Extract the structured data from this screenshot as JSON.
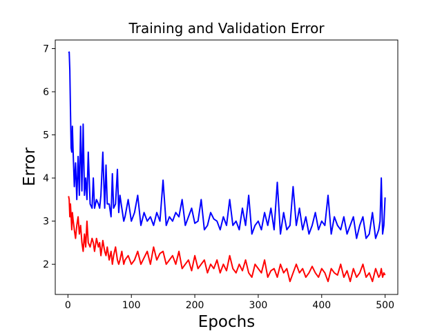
{
  "chart_data": {
    "type": "line",
    "title": "Training and Validation Error",
    "xlabel": "Epochs",
    "ylabel": "Error",
    "xlim": [
      -20,
      520
    ],
    "ylim": [
      1.3,
      7.2
    ],
    "x_ticks": [
      0,
      100,
      200,
      300,
      400,
      500
    ],
    "y_ticks": [
      2,
      3,
      4,
      5,
      6,
      7
    ],
    "grid": false,
    "legend": "none",
    "series": [
      {
        "color": "#0000ff",
        "x": [
          1,
          2,
          3,
          4,
          5,
          6,
          7,
          8,
          10,
          12,
          14,
          16,
          18,
          20,
          22,
          24,
          26,
          28,
          30,
          32,
          35,
          38,
          40,
          42,
          45,
          48,
          50,
          52,
          55,
          58,
          60,
          62,
          65,
          68,
          70,
          72,
          75,
          78,
          80,
          82,
          85,
          88,
          90,
          95,
          100,
          105,
          110,
          115,
          120,
          125,
          130,
          135,
          140,
          145,
          150,
          155,
          160,
          165,
          170,
          175,
          180,
          185,
          190,
          195,
          200,
          205,
          210,
          215,
          220,
          225,
          230,
          235,
          240,
          245,
          250,
          255,
          260,
          265,
          270,
          275,
          280,
          285,
          290,
          295,
          300,
          305,
          310,
          315,
          320,
          325,
          330,
          335,
          340,
          345,
          350,
          355,
          360,
          365,
          370,
          375,
          380,
          385,
          390,
          395,
          400,
          405,
          410,
          415,
          420,
          425,
          430,
          435,
          440,
          445,
          450,
          455,
          460,
          465,
          470,
          475,
          480,
          485,
          490,
          492,
          494,
          496,
          498,
          500
        ],
        "y": [
          6.9,
          6.92,
          6.5,
          5.6,
          4.7,
          4.6,
          5.2,
          4.7,
          3.8,
          4.35,
          3.5,
          4.5,
          3.6,
          5.2,
          3.7,
          5.25,
          3.6,
          4.0,
          3.5,
          4.6,
          3.4,
          3.3,
          4.0,
          3.3,
          3.5,
          3.4,
          3.3,
          3.6,
          4.6,
          3.3,
          4.3,
          3.4,
          3.4,
          3.1,
          4.1,
          3.3,
          3.4,
          4.2,
          3.2,
          3.6,
          3.3,
          3.0,
          3.1,
          3.5,
          3.0,
          3.2,
          3.6,
          2.9,
          3.2,
          3.0,
          3.1,
          2.9,
          3.2,
          3.0,
          3.95,
          2.9,
          3.1,
          3.0,
          3.2,
          3.1,
          3.5,
          2.9,
          3.1,
          3.3,
          2.95,
          3.0,
          3.5,
          2.8,
          2.9,
          3.2,
          3.05,
          3.0,
          2.8,
          3.1,
          2.9,
          3.5,
          2.9,
          3.0,
          2.8,
          3.3,
          2.9,
          3.6,
          2.7,
          2.9,
          3.0,
          2.8,
          3.2,
          2.9,
          3.3,
          2.8,
          3.9,
          2.7,
          3.2,
          2.8,
          2.9,
          3.8,
          2.9,
          3.3,
          2.8,
          3.1,
          2.7,
          2.9,
          3.2,
          2.8,
          3.0,
          2.9,
          3.6,
          2.7,
          3.1,
          2.9,
          2.8,
          3.1,
          2.7,
          2.9,
          3.1,
          2.6,
          2.9,
          3.1,
          2.6,
          2.7,
          3.2,
          2.6,
          2.8,
          3.0,
          4.0,
          2.7,
          2.9,
          3.55
        ]
      },
      {
        "color": "#ff0000",
        "x": [
          1,
          2,
          3,
          4,
          5,
          6,
          7,
          8,
          10,
          12,
          14,
          16,
          18,
          20,
          22,
          24,
          26,
          28,
          30,
          32,
          35,
          38,
          40,
          42,
          45,
          48,
          50,
          52,
          55,
          58,
          60,
          62,
          65,
          68,
          70,
          72,
          75,
          78,
          80,
          82,
          85,
          88,
          90,
          95,
          100,
          105,
          110,
          115,
          120,
          125,
          130,
          135,
          140,
          145,
          150,
          155,
          160,
          165,
          170,
          175,
          180,
          185,
          190,
          195,
          200,
          205,
          210,
          215,
          220,
          225,
          230,
          235,
          240,
          245,
          250,
          255,
          260,
          265,
          270,
          275,
          280,
          285,
          290,
          295,
          300,
          305,
          310,
          315,
          320,
          325,
          330,
          335,
          340,
          345,
          350,
          355,
          360,
          365,
          370,
          375,
          380,
          385,
          390,
          395,
          400,
          405,
          410,
          415,
          420,
          425,
          430,
          435,
          440,
          445,
          450,
          455,
          460,
          465,
          470,
          475,
          480,
          485,
          490,
          492,
          494,
          496,
          498,
          500
        ],
        "y": [
          3.58,
          3.5,
          3.1,
          3.4,
          3.1,
          2.8,
          3.2,
          3.05,
          2.8,
          2.6,
          2.9,
          3.1,
          2.7,
          2.9,
          2.5,
          2.3,
          2.7,
          2.4,
          3.0,
          2.5,
          2.4,
          2.6,
          2.5,
          2.3,
          2.6,
          2.4,
          2.5,
          2.2,
          2.55,
          2.3,
          2.2,
          2.4,
          2.1,
          2.3,
          2.0,
          2.2,
          2.4,
          2.1,
          2.0,
          2.1,
          2.3,
          2.0,
          2.1,
          2.2,
          2.0,
          2.1,
          2.3,
          2.0,
          2.15,
          2.3,
          2.0,
          2.4,
          2.1,
          2.25,
          2.3,
          2.0,
          2.1,
          2.2,
          2.0,
          2.3,
          1.9,
          2.0,
          2.1,
          1.85,
          2.2,
          1.9,
          2.0,
          2.1,
          1.8,
          2.0,
          1.9,
          2.1,
          1.8,
          2.0,
          1.85,
          2.2,
          1.9,
          1.8,
          2.0,
          1.85,
          2.1,
          1.8,
          1.7,
          2.0,
          1.9,
          1.8,
          2.1,
          1.7,
          1.85,
          1.9,
          1.7,
          2.0,
          1.8,
          1.9,
          1.6,
          1.8,
          2.0,
          1.8,
          1.9,
          1.7,
          1.8,
          1.95,
          1.8,
          1.7,
          1.9,
          1.8,
          1.6,
          1.9,
          1.8,
          1.75,
          2.0,
          1.7,
          1.85,
          1.6,
          1.9,
          1.7,
          1.8,
          2.0,
          1.7,
          1.8,
          1.6,
          1.9,
          1.7,
          1.75,
          1.9,
          1.7,
          1.8,
          1.75
        ]
      }
    ]
  }
}
